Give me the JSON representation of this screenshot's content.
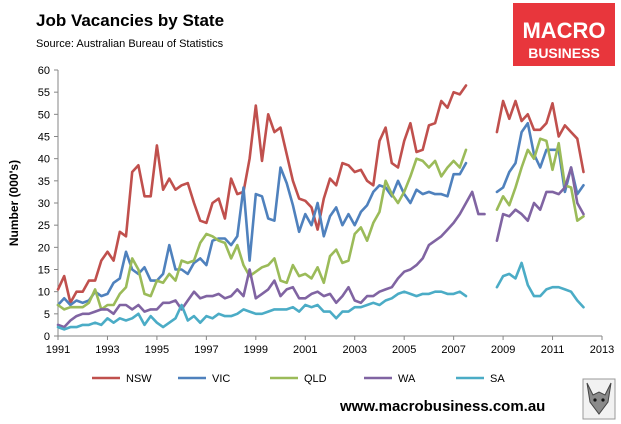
{
  "header": {
    "title": "Job Vacancies by State",
    "subtitle": "Source: Australian Bureau of Statistics"
  },
  "logo": {
    "line1": "MACRO",
    "line2": "BUSINESS",
    "bg_color": "#e8363c",
    "fox_icon": "fox-icon"
  },
  "footer": {
    "url": "www.macrobusiness.com.au"
  },
  "chart_data": {
    "type": "line",
    "ylabel": "Number (000's)",
    "xlabel": "",
    "ylim": [
      0,
      60
    ],
    "xlim": [
      1991,
      2013
    ],
    "yticks": [
      "0",
      "5",
      "10",
      "15",
      "20",
      "25",
      "30",
      "35",
      "40",
      "45",
      "50",
      "55",
      "60"
    ],
    "xticks": [
      "1991",
      "1993",
      "1995",
      "1997",
      "1999",
      "2001",
      "2003",
      "2005",
      "2007",
      "2009",
      "2011",
      "2013"
    ],
    "grid": false,
    "legend_position": "bottom",
    "series": [
      {
        "name": "NSW",
        "color": "#c0504d",
        "segments": [
          {
            "x0": 1991.0,
            "values": [
              10.5,
              13.5,
              7.5,
              10.0,
              10.0,
              12.5,
              12.5,
              17.0,
              19.0,
              17.0,
              23.5,
              22.5,
              37.0,
              38.5,
              31.5,
              31.5,
              43.0,
              33.0,
              35.5,
              33.0,
              34.0,
              34.5,
              30.0,
              26.0,
              25.5,
              30.0,
              31.0,
              26.5,
              35.5,
              32.0,
              32.5,
              40.0,
              52.0,
              39.5,
              50.0,
              46.0,
              47.0,
              41.0,
              35.0,
              31.0,
              30.5,
              29.0,
              24.0,
              31.0,
              35.5,
              34.0,
              39.0,
              38.5,
              37.0,
              37.5,
              35.0,
              34.0,
              44.0,
              47.0,
              39.0,
              38.0,
              44.0,
              48.0,
              41.5,
              42.0,
              47.5,
              48.0,
              53.0,
              51.5,
              55.0,
              54.5,
              56.5
            ]
          },
          {
            "x0": 2008.75,
            "values": [
              46.0,
              53.0,
              49.0,
              53.0,
              48.5,
              50.0,
              46.5,
              46.5,
              48.0,
              52.5,
              45.0,
              47.5,
              46.0,
              44.5,
              37.0
            ]
          }
        ]
      },
      {
        "name": "VIC",
        "color": "#4f81bd",
        "segments": [
          {
            "x0": 1991.0,
            "values": [
              7.0,
              8.5,
              7.0,
              8.0,
              7.5,
              8.0,
              10.0,
              9.0,
              9.5,
              12.0,
              13.0,
              19.0,
              15.0,
              14.0,
              15.5,
              12.5,
              12.5,
              14.0,
              20.5,
              15.0,
              15.0,
              14.0,
              16.5,
              17.5,
              16.0,
              21.5,
              22.0,
              22.0,
              20.5,
              22.5,
              33.5,
              17.0,
              32.0,
              31.5,
              26.5,
              26.0,
              38.0,
              34.5,
              29.5,
              23.5,
              27.5,
              25.0,
              30.0,
              22.5,
              27.0,
              29.0,
              25.0,
              27.5,
              25.0,
              28.0,
              29.5,
              32.5,
              34.0,
              33.5,
              31.5,
              35.0,
              32.0,
              30.0,
              33.0,
              32.0,
              32.5,
              32.0,
              32.0,
              31.5,
              36.5,
              36.5,
              39.0
            ]
          },
          {
            "x0": 2008.75,
            "values": [
              32.5,
              33.5,
              37.0,
              39.0,
              46.0,
              48.0,
              41.0,
              38.0,
              42.0,
              42.0,
              42.0,
              32.5,
              38.0,
              32.0,
              34.0
            ]
          }
        ]
      },
      {
        "name": "QLD",
        "color": "#9bbb59",
        "segments": [
          {
            "x0": 1991.0,
            "values": [
              7.0,
              6.0,
              6.5,
              6.5,
              6.5,
              7.5,
              10.5,
              6.0,
              7.0,
              7.0,
              9.5,
              11.0,
              17.5,
              15.0,
              9.5,
              9.0,
              12.5,
              12.0,
              14.0,
              12.5,
              17.0,
              16.5,
              17.0,
              21.0,
              23.0,
              22.5,
              21.5,
              21.0,
              17.5,
              20.5,
              16.0,
              13.5,
              14.5,
              15.5,
              16.0,
              17.5,
              12.5,
              12.0,
              16.0,
              13.5,
              14.0,
              13.0,
              15.5,
              12.0,
              18.0,
              19.5,
              16.5,
              17.0,
              23.0,
              24.5,
              21.5,
              25.5,
              28.0,
              35.0,
              32.0,
              30.0,
              32.5,
              36.0,
              40.0,
              39.5,
              38.0,
              39.5,
              36.0,
              38.0,
              39.5,
              38.0,
              42.0
            ]
          },
          {
            "x0": 2008.75,
            "values": [
              28.5,
              31.5,
              29.5,
              33.5,
              38.0,
              42.0,
              40.0,
              44.5,
              44.0,
              37.5,
              43.5,
              34.0,
              33.5,
              26.0,
              27.0
            ]
          }
        ]
      },
      {
        "name": "WA",
        "color": "#8064a2",
        "segments": [
          {
            "x0": 1991.0,
            "values": [
              2.5,
              2.0,
              3.5,
              4.5,
              5.0,
              5.0,
              5.5,
              6.0,
              6.0,
              5.0,
              7.0,
              7.0,
              6.0,
              7.0,
              5.5,
              6.0,
              6.0,
              7.5,
              7.5,
              8.0,
              6.0,
              8.0,
              10.0,
              8.5,
              9.0,
              9.0,
              9.5,
              8.5,
              9.0,
              10.5,
              9.0,
              15.0,
              8.5,
              9.5,
              10.5,
              12.5,
              9.0,
              10.5,
              11.0,
              8.5,
              8.5,
              9.5,
              10.0,
              9.0,
              9.5,
              7.5,
              9.0,
              11.0,
              8.0,
              7.5,
              9.0,
              9.0,
              10.0,
              10.5,
              11.0,
              13.0,
              14.5,
              15.0,
              16.0,
              17.5,
              20.5,
              21.5,
              22.5,
              24.0,
              25.5,
              27.5,
              30.0,
              32.5,
              27.5,
              27.5
            ]
          },
          {
            "x0": 2008.75,
            "values": [
              21.5,
              27.5,
              27.0,
              28.5,
              27.5,
              26.0,
              30.0,
              28.5,
              32.5,
              32.5,
              32.0,
              33.5,
              38.0,
              30.0,
              27.5
            ]
          }
        ]
      },
      {
        "name": "SA",
        "color": "#4bacc6",
        "segments": [
          {
            "x0": 1991.0,
            "values": [
              2.0,
              1.5,
              2.0,
              2.0,
              2.5,
              2.5,
              3.0,
              2.5,
              4.0,
              3.0,
              4.0,
              3.5,
              4.0,
              5.0,
              2.5,
              4.5,
              3.0,
              2.0,
              3.0,
              4.0,
              7.0,
              3.5,
              4.5,
              3.0,
              4.5,
              4.0,
              5.0,
              4.5,
              4.5,
              5.0,
              6.0,
              5.5,
              5.0,
              5.0,
              5.5,
              6.0,
              6.0,
              6.0,
              6.5,
              5.5,
              7.0,
              6.5,
              7.0,
              5.5,
              5.5,
              4.0,
              5.5,
              5.5,
              6.5,
              6.5,
              7.0,
              7.5,
              7.0,
              8.0,
              8.5,
              9.5,
              10.0,
              9.5,
              9.0,
              9.5,
              9.5,
              10.0,
              10.0,
              9.5,
              9.5,
              10.0,
              9.0
            ]
          },
          {
            "x0": 2008.75,
            "values": [
              11.0,
              13.5,
              14.0,
              13.0,
              16.5,
              11.5,
              9.0,
              9.0,
              10.5,
              11.0,
              11.0,
              10.5,
              10.0,
              8.0,
              6.5
            ]
          }
        ]
      }
    ]
  }
}
